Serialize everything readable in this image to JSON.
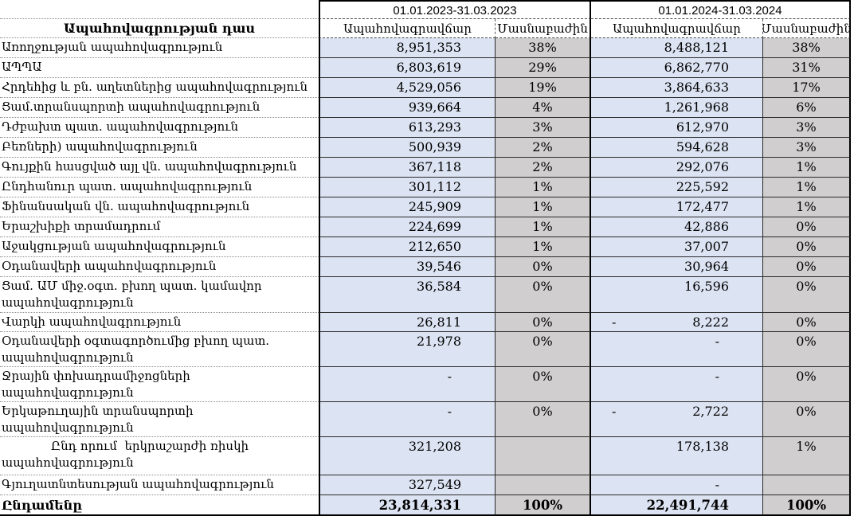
{
  "chart_data": {
    "type": "table",
    "class_column_header": "Ապահովագրության դաս",
    "periods": [
      "01.01.2023-31.03.2023",
      "01.01.2024-31.03.2024"
    ],
    "premium_label": "Ապահովագրավճար",
    "share_label": "Մասնաբաժին",
    "rows": [
      {
        "label": "Առողջության ապահովագրություն",
        "p23": "8,951,353",
        "s23": "38%",
        "p24": "8,488,121",
        "s24": "38%"
      },
      {
        "label": "ԱՊՊԱ",
        "p23": "6,803,619",
        "s23": "29%",
        "p24": "6,862,770",
        "s24": "31%"
      },
      {
        "label": "Հրդեհից և բն. աղետներից ապահովագրություն",
        "p23": "4,529,056",
        "s23": "19%",
        "p24": "3,864,633",
        "s24": "17%"
      },
      {
        "label": "Ցամ.տրանսպորտի ապահովագրություն",
        "p23": "939,664",
        "s23": "4%",
        "p24": "1,261,968",
        "s24": "6%"
      },
      {
        "label": "Դժբախտ պատ. ապահովագրություն",
        "p23": "613,293",
        "s23": "3%",
        "p24": "612,970",
        "s24": "3%"
      },
      {
        "label": "Բեռների) ապահովագրություն",
        "p23": "500,939",
        "s23": "2%",
        "p24": "594,628",
        "s24": "3%"
      },
      {
        "label": "Գույքին հասցված այլ վն. ապահովագրություն",
        "p23": "367,118",
        "s23": "2%",
        "p24": "292,076",
        "s24": "1%"
      },
      {
        "label": "Ընդհանուր պատ. ապահովագրություն",
        "p23": "301,112",
        "s23": "1%",
        "p24": "225,592",
        "s24": "1%"
      },
      {
        "label": "Ֆինանսական վն. ապահովագրություն",
        "p23": "245,909",
        "s23": "1%",
        "p24": "172,477",
        "s24": "1%"
      },
      {
        "label": "Երաշխիքի տրամադրում",
        "p23": "224,699",
        "s23": "1%",
        "p24": "42,886",
        "s24": "0%"
      },
      {
        "label": "Աջակցության ապահովագրություն",
        "p23": "212,650",
        "s23": "1%",
        "p24": "37,007",
        "s24": "0%"
      },
      {
        "label": "Օդանավերի ապահովագրություն",
        "p23": "39,546",
        "s23": "0%",
        "p24": "30,964",
        "s24": "0%"
      },
      {
        "label": "Ցամ. ԱՄ միջ.օգտ. բխող պատ. կամավոր\nապահովագրություն",
        "p23": "36,584",
        "s23": "0%",
        "p24": "16,596",
        "s24": "0%"
      },
      {
        "label": "Վարկի ապահովագրություն",
        "p23": "26,811",
        "s23": "0%",
        "p24": "- 8,222",
        "s24": "0%"
      },
      {
        "label": "Օդանավերի օգտագործումից բխող պատ.\nապահովագրություն",
        "p23": "21,978",
        "s23": "0%",
        "p24": "-",
        "s24": "0%"
      },
      {
        "label": "Ջրային փոխադրամիջոցների ապահովագրություն",
        "p23": "-",
        "s23": "0%",
        "p24": "-",
        "s24": "0%"
      },
      {
        "label": "Երկաթուղային տրանսպորտի ապահովագրություն",
        "p23": "-",
        "s23": "0%",
        "p24": "- 2,722",
        "s24": "0%"
      },
      {
        "label": "Ընդ որում  երկրաշարժի ռիսկի\nապահովագրություն",
        "p23": "321,208",
        "s23": "",
        "p24": "178,138",
        "s24": "1%"
      },
      {
        "label": "Գյուղատնտեսության ապահովագրություն",
        "p23": "327,549",
        "s23": "",
        "p24": "-",
        "s24": ""
      }
    ],
    "total": {
      "label": "Ընդամենը",
      "p23": "23,814,331",
      "s23": "100%",
      "p24": "22,491,744",
      "s24": "100%"
    }
  },
  "colors": {
    "premium_bg": "#dce3f2",
    "share_bg": "#d0cece",
    "border": "#000000"
  }
}
